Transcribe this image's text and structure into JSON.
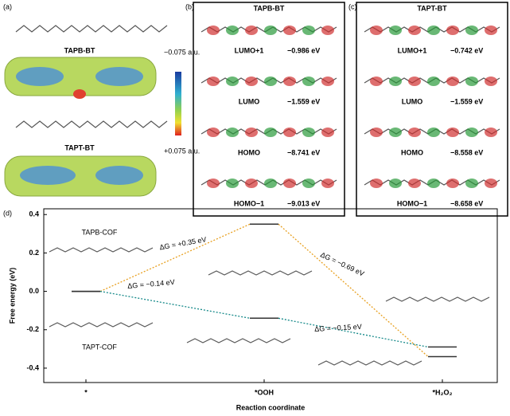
{
  "panel_a": {
    "label": "(a)",
    "molecule_1": "TAPB-BT",
    "molecule_2": "TAPT-BT",
    "scale_top": "−0.075 a.u.",
    "scale_bottom": "+0.075 a.u."
  },
  "panel_b": {
    "label": "(b)",
    "title": "TAPB-BT",
    "orbitals": [
      {
        "name": "LUMO+1",
        "energy": "−0.986 eV"
      },
      {
        "name": "LUMO",
        "energy": "−1.559 eV"
      },
      {
        "name": "HOMO",
        "energy": "−8.741 eV"
      },
      {
        "name": "HOMO−1",
        "energy": "−9.013 eV"
      }
    ]
  },
  "panel_c": {
    "label": "(c)",
    "title": "TAPT-BT",
    "orbitals": [
      {
        "name": "LUMO+1",
        "energy": "−0.742 eV"
      },
      {
        "name": "LUMO",
        "energy": "−1.559 eV"
      },
      {
        "name": "HOMO",
        "energy": "−8.558 eV"
      },
      {
        "name": "HOMO−1",
        "energy": "−8.658 eV"
      }
    ]
  },
  "chart_data": {
    "type": "energy_levels",
    "label": "(d)",
    "xlabel": "Reaction coordinate",
    "ylabel": "Free energy (eV)",
    "categories": [
      "*",
      "*OOH",
      "*H₂O₂"
    ],
    "series": [
      {
        "name": "TAPB-COF",
        "color": "#e8a020",
        "values": [
          0,
          0.35,
          -0.34
        ]
      },
      {
        "name": "TAPT-COF",
        "color": "#178a8a",
        "values": [
          0,
          -0.14,
          -0.29
        ]
      }
    ],
    "annotations": [
      {
        "text": "ΔG = +0.35 eV",
        "color": "#e8a020"
      },
      {
        "text": "ΔG = −0.69 eV",
        "color": "#e8a020"
      },
      {
        "text": "ΔG = −0.14 eV",
        "color": "#178a8a"
      },
      {
        "text": "ΔG = −0.15 eV",
        "color": "#178a8a"
      }
    ],
    "ylim": [
      -0.475,
      0.43
    ],
    "yticks": [
      -0.4,
      -0.2,
      {
        "value": 0,
        "label": "0.0"
      },
      0.2,
      0.4
    ]
  }
}
